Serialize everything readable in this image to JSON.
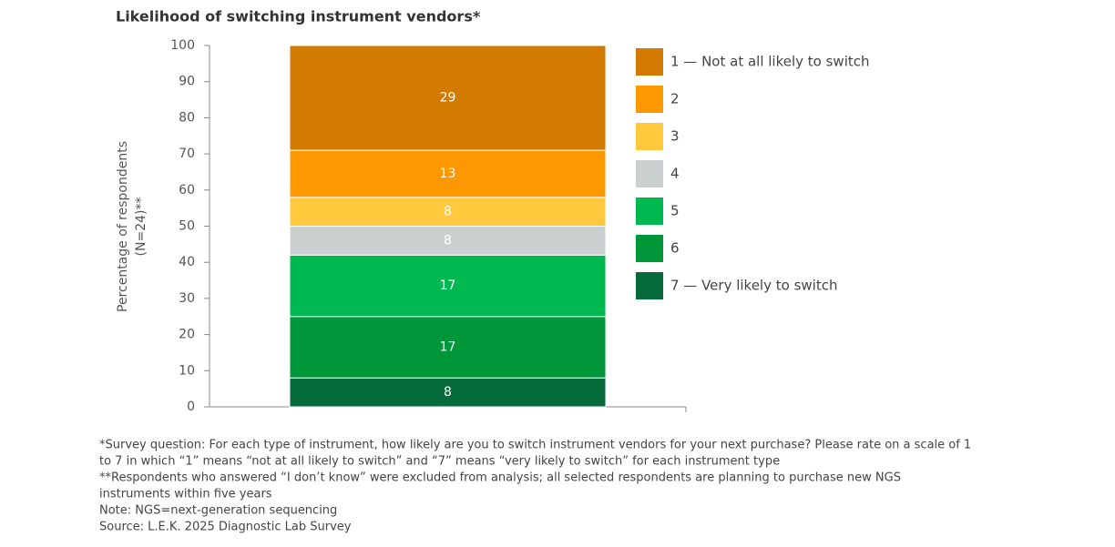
{
  "chart_data": {
    "type": "stacked_bar",
    "title": "Likelihood of switching instrument vendors*",
    "ylabel": [
      "Percentage of respondents",
      "(N=24)**"
    ],
    "categories": [
      null
    ],
    "series": [
      {
        "name": "1 — Not at all likely to switch",
        "color": "#d27b00",
        "values": [
          29
        ]
      },
      {
        "name": "2",
        "color": "#fd9800",
        "values": [
          13
        ]
      },
      {
        "name": "3",
        "color": "#ffc83d",
        "values": [
          8
        ]
      },
      {
        "name": "4",
        "color": "#c9d0cf",
        "values": [
          8
        ]
      },
      {
        "name": "5",
        "color": "#00b850",
        "values": [
          17
        ]
      },
      {
        "name": "6",
        "color": "#00963a",
        "values": [
          17
        ]
      },
      {
        "name": "7 — Very likely to switch",
        "color": "#066b3b",
        "values": [
          8
        ]
      }
    ],
    "stack_from": "last",
    "ylim": [
      0,
      100
    ],
    "yticks": [
      0,
      10,
      20,
      30,
      40,
      50,
      60,
      70,
      80,
      90,
      100
    ],
    "legend": "right",
    "notes": [
      "*Survey question: For each type of instrument, how likely are you to switch instrument vendors for your next purchase? Please rate on a scale of 1",
      "to 7 in which “1” means “not at all likely to switch” and “7” means “very likely to switch” for each instrument type",
      "**Respondents who answered “I don’t know” were excluded from analysis; all selected respondents are planning to purchase new NGS",
      "instruments within five years",
      "Note: NGS=next-generation sequencing",
      "Source: L.E.K. 2025 Diagnostic Lab Survey"
    ]
  }
}
